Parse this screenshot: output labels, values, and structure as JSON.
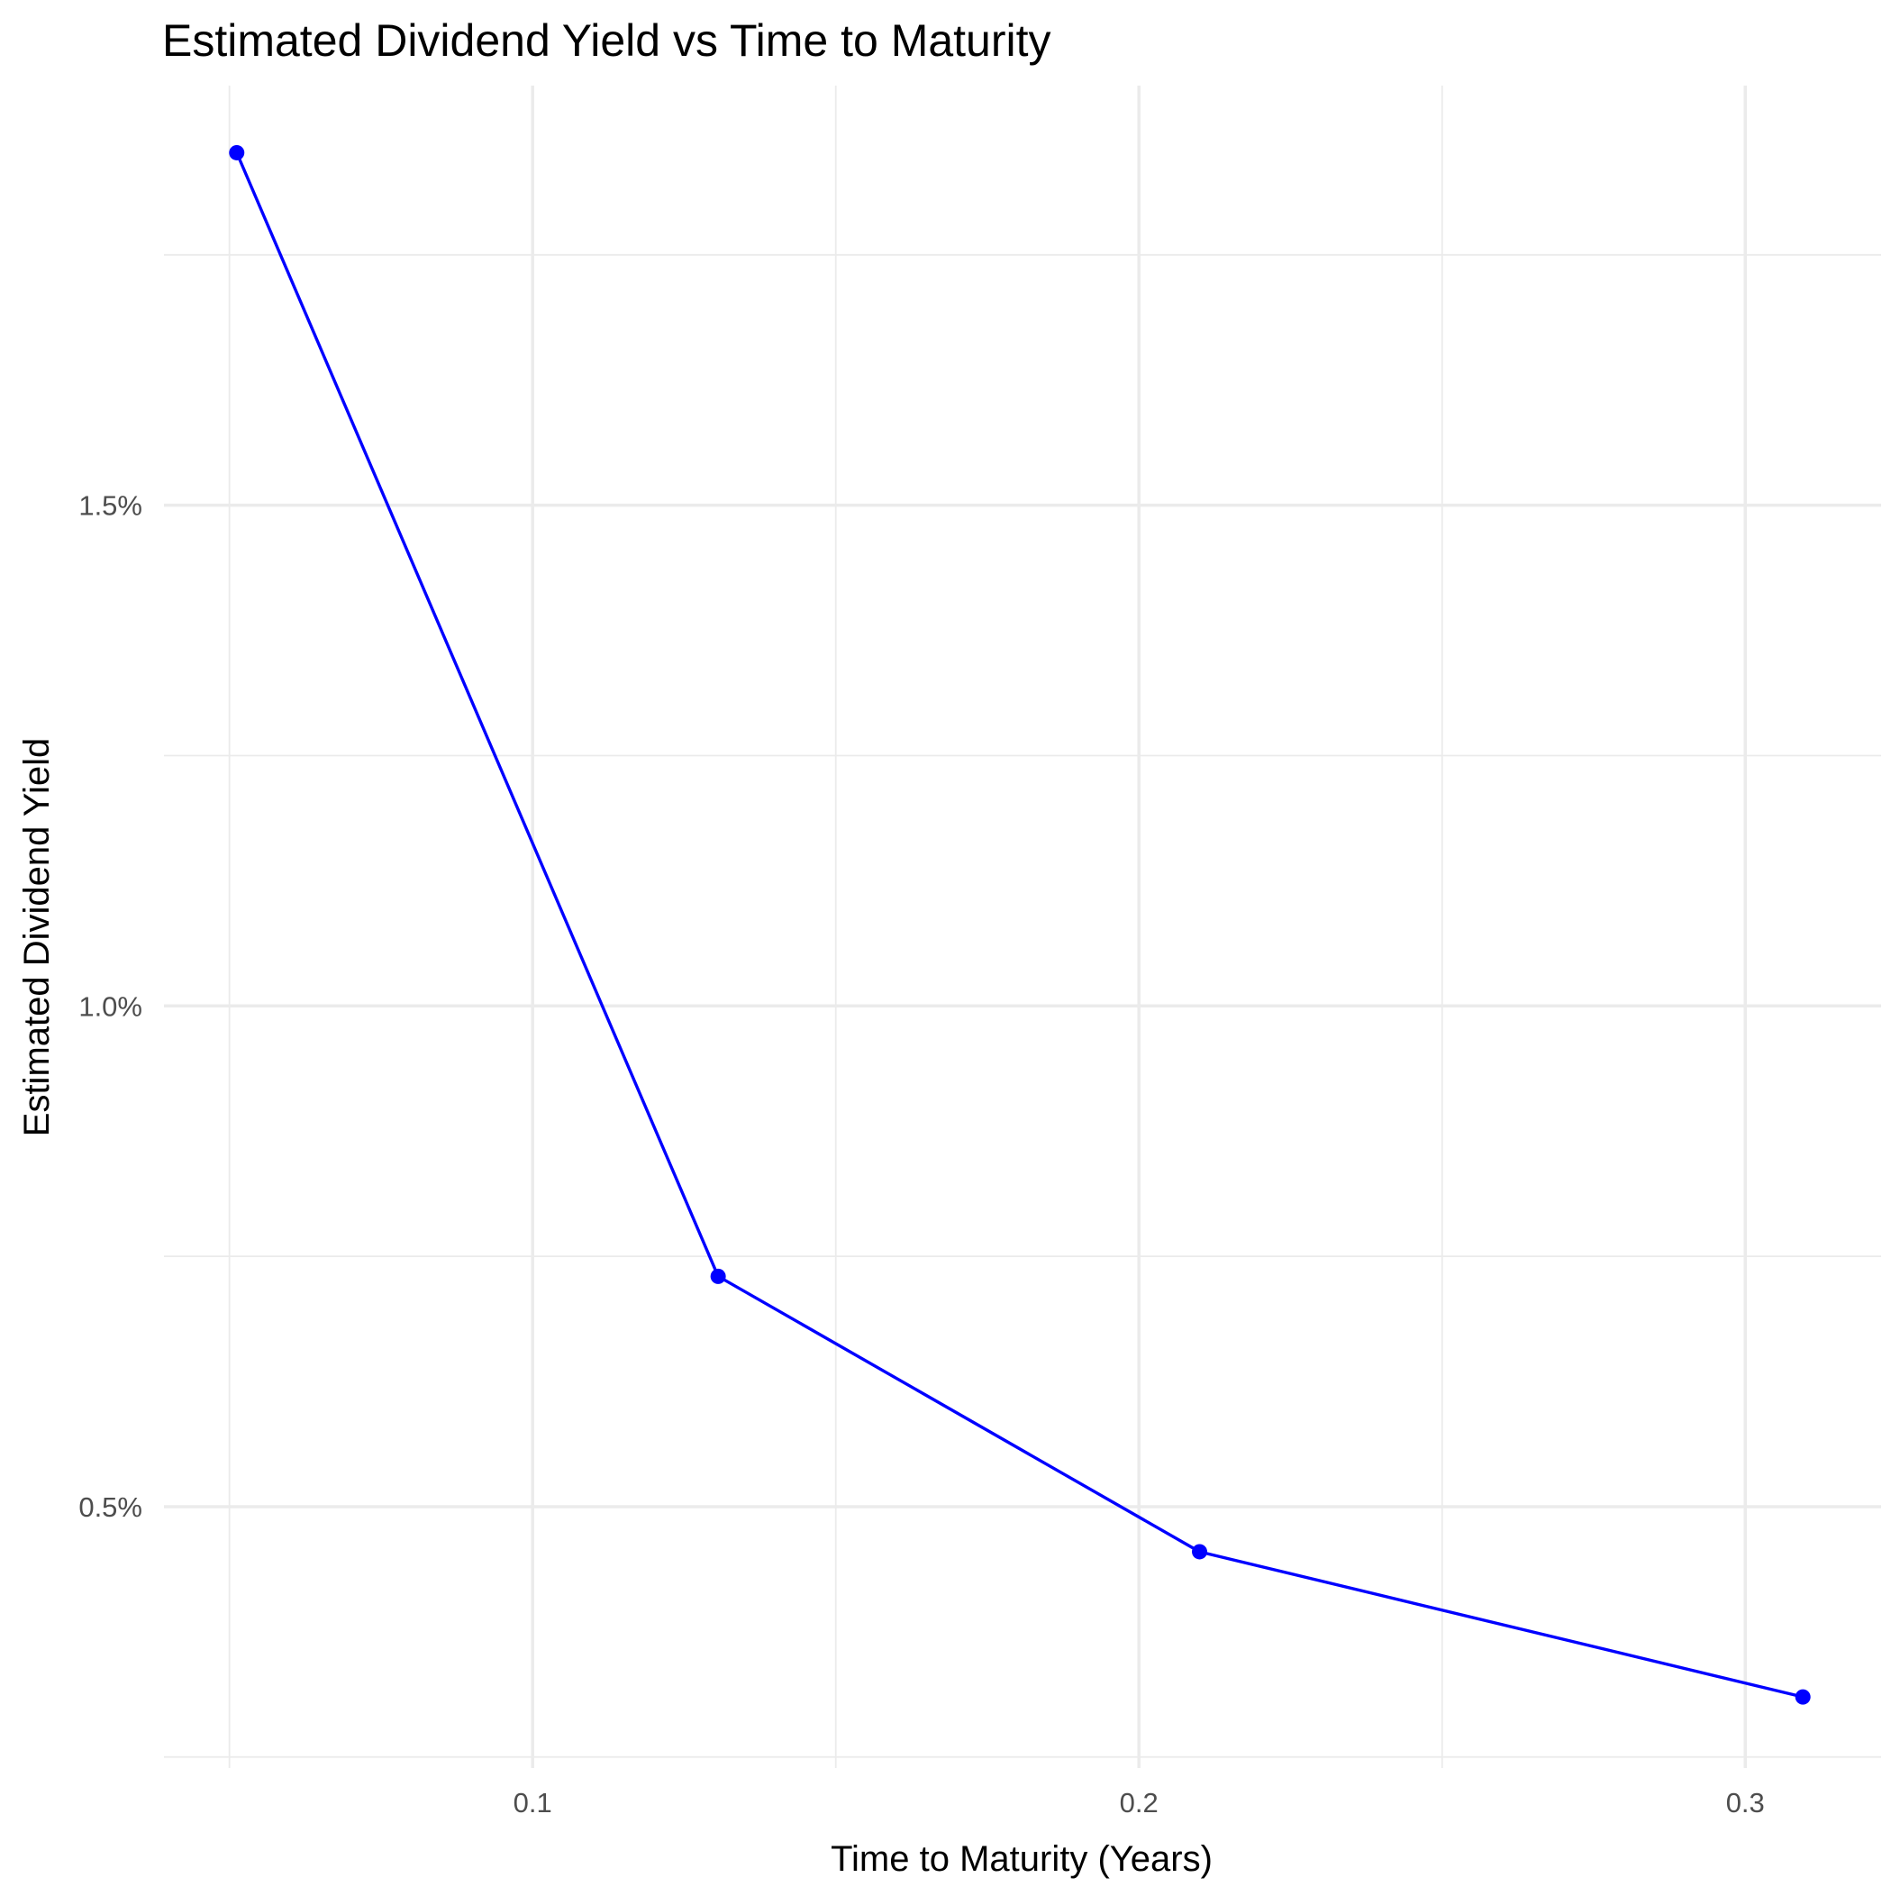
{
  "chart_data": {
    "type": "line",
    "title": "Estimated Dividend Yield vs Time to Maturity",
    "xlabel": "Time to Maturity (Years)",
    "ylabel": "Estimated Dividend Yield",
    "x_ticks": [
      {
        "value": 0.1,
        "label": "0.1"
      },
      {
        "value": 0.2,
        "label": "0.2"
      },
      {
        "value": 0.3,
        "label": "0.3"
      }
    ],
    "x_minor_ticks": [
      0.05,
      0.15,
      0.25
    ],
    "y_ticks": [
      {
        "value": 0.005,
        "label": "0.5%"
      },
      {
        "value": 0.01,
        "label": "1.0%"
      },
      {
        "value": 0.015,
        "label": "1.5%"
      }
    ],
    "y_minor_ticks": [
      0.0025,
      0.0075,
      0.0125,
      0.0175
    ],
    "xlim": [
      0.0392,
      0.3224
    ],
    "ylim": [
      0.00239,
      0.01919
    ],
    "grid": true,
    "series": [
      {
        "color": "#0000ff",
        "points": [
          {
            "x": 0.0512,
            "y": 0.01852
          },
          {
            "x": 0.1306,
            "y": 0.0073
          },
          {
            "x": 0.21,
            "y": 0.00455
          },
          {
            "x": 0.3095,
            "y": 0.0031
          }
        ]
      }
    ]
  }
}
